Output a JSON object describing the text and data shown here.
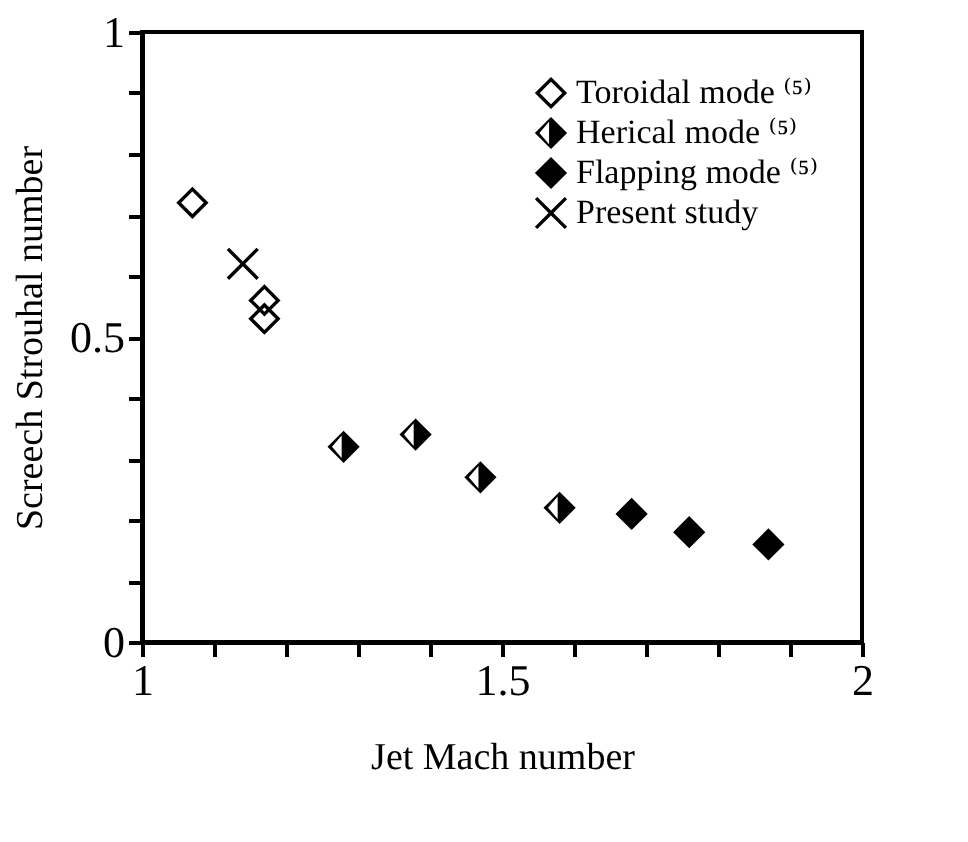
{
  "chart_data": {
    "type": "scatter",
    "xlabel": "Jet Mach number",
    "ylabel": "Screech Strouhal number",
    "xlim": [
      1,
      2
    ],
    "ylim": [
      0,
      1
    ],
    "xticks": [
      1,
      {
        "value": 1.1,
        "label": null
      },
      {
        "value": 1.2,
        "label": null
      },
      {
        "value": 1.3,
        "label": null
      },
      {
        "value": 1.4,
        "label": null
      },
      1.5,
      {
        "value": 1.6,
        "label": null
      },
      {
        "value": 1.7,
        "label": null
      },
      {
        "value": 1.8,
        "label": null
      },
      {
        "value": 1.9,
        "label": null
      },
      2
    ],
    "yticks": [
      0,
      {
        "value": 0.1,
        "label": null
      },
      {
        "value": 0.2,
        "label": null
      },
      {
        "value": 0.3,
        "label": null
      },
      {
        "value": 0.4,
        "label": null
      },
      0.5,
      {
        "value": 0.6,
        "label": null
      },
      {
        "value": 0.7,
        "label": null
      },
      {
        "value": 0.8,
        "label": null
      },
      {
        "value": 0.9,
        "label": null
      },
      1
    ],
    "grid": false,
    "legend": "top right",
    "series": [
      {
        "name": "Toroidal mode ⁽⁵⁾",
        "color": "#000000",
        "marker": "diamond-open",
        "x": [
          1.07,
          1.17,
          1.17
        ],
        "values": [
          0.72,
          0.56,
          0.53
        ]
      },
      {
        "name": "Herical mode ⁽⁵⁾",
        "color": "#000000",
        "marker": "diamond-half",
        "x": [
          1.28,
          1.38,
          1.47,
          1.58
        ],
        "values": [
          0.32,
          0.34,
          0.27,
          0.22
        ]
      },
      {
        "name": "Flapping mode ⁽⁵⁾",
        "color": "#000000",
        "marker": "diamond",
        "x": [
          1.68,
          1.76,
          1.87
        ],
        "values": [
          0.21,
          0.18,
          0.16
        ]
      },
      {
        "name": "Present study",
        "color": "#000000",
        "marker": "cross",
        "x": [
          1.14
        ],
        "values": [
          0.62
        ]
      }
    ]
  }
}
